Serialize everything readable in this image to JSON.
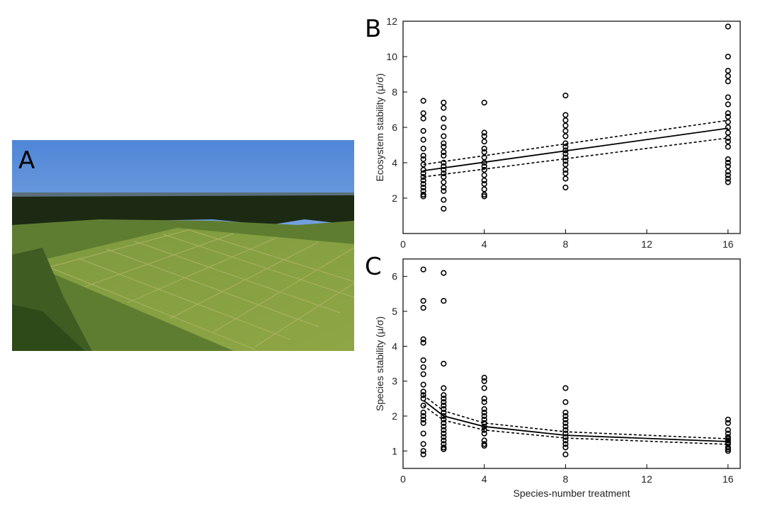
{
  "photo": {
    "label": "A"
  },
  "chart_data": [
    {
      "type": "scatter",
      "panel_label": "B",
      "y_label": "Ecosystem stability (μ/σ)",
      "xlim": [
        0,
        16.6
      ],
      "ylim": [
        0,
        12
      ],
      "xticks": [
        0,
        4,
        8,
        12,
        16
      ],
      "yticks": [
        2,
        4,
        6,
        8,
        10,
        12
      ],
      "color": "#000000",
      "x": [
        1,
        1,
        1,
        1,
        1,
        1,
        1,
        1,
        1,
        1,
        1,
        1,
        1,
        1,
        1,
        1,
        1,
        1,
        2,
        2,
        2,
        2,
        2,
        2,
        2,
        2,
        2,
        2,
        2,
        2,
        2,
        2,
        2,
        2,
        2,
        2,
        2,
        4,
        4,
        4,
        4,
        4,
        4,
        4,
        4,
        4,
        4,
        4,
        4,
        4,
        4,
        4,
        4,
        8,
        8,
        8,
        8,
        8,
        8,
        8,
        8,
        8,
        8,
        8,
        8,
        8,
        8,
        8,
        8,
        8,
        16,
        16,
        16,
        16,
        16,
        16,
        16,
        16,
        16,
        16,
        16,
        16,
        16,
        16,
        16,
        16,
        16,
        16,
        16,
        16,
        16,
        16
      ],
      "values": [
        7.5,
        6.8,
        6.5,
        5.8,
        5.3,
        4.8,
        4.4,
        4.2,
        3.9,
        3.6,
        3.4,
        3.2,
        3.0,
        2.8,
        2.6,
        2.4,
        2.2,
        2.1,
        7.4,
        7.1,
        6.5,
        6.0,
        5.5,
        5.1,
        4.9,
        4.6,
        4.4,
        4.0,
        3.8,
        3.6,
        3.4,
        3.2,
        2.9,
        2.6,
        2.4,
        1.9,
        1.4,
        7.4,
        5.7,
        5.5,
        5.2,
        4.8,
        4.6,
        4.3,
        4.0,
        3.8,
        3.6,
        3.3,
        3.0,
        2.8,
        2.5,
        2.2,
        2.1,
        7.8,
        6.7,
        6.4,
        6.1,
        5.8,
        5.5,
        5.1,
        4.9,
        4.7,
        4.5,
        4.3,
        4.1,
        3.9,
        3.6,
        3.4,
        3.1,
        2.6,
        11.7,
        10.0,
        9.2,
        8.9,
        8.6,
        7.7,
        7.3,
        6.8,
        6.6,
        6.3,
        6.0,
        5.7,
        5.4,
        5.2,
        4.9,
        4.2,
        4.0,
        3.8,
        3.5,
        3.3,
        3.1,
        2.9
      ],
      "fits": [
        {
          "style": "solid",
          "x": [
            1,
            16
          ],
          "values": [
            3.55,
            5.95
          ]
        },
        {
          "style": "dashed",
          "x": [
            1,
            16
          ],
          "values": [
            3.9,
            6.4
          ]
        },
        {
          "style": "dashed",
          "x": [
            1,
            16
          ],
          "values": [
            3.2,
            5.4
          ]
        }
      ]
    },
    {
      "type": "scatter",
      "panel_label": "C",
      "y_label": "Species stability (μ/σ)",
      "x_label": "Species-number treatment",
      "xlim": [
        0,
        16.6
      ],
      "ylim": [
        0.5,
        6.5
      ],
      "xticks": [
        0,
        4,
        8,
        12,
        16
      ],
      "yticks": [
        1,
        2,
        3,
        4,
        5,
        6
      ],
      "color": "#000000",
      "x": [
        1,
        1,
        1,
        1,
        1,
        1,
        1,
        1,
        1,
        1,
        1,
        1,
        1,
        1,
        1,
        1,
        1,
        1,
        1,
        1,
        1,
        2,
        2,
        2,
        2,
        2,
        2,
        2,
        2,
        2,
        2,
        2,
        2,
        2,
        2,
        2,
        2,
        2,
        2,
        2,
        2,
        2,
        4,
        4,
        4,
        4,
        4,
        4,
        4,
        4,
        4,
        4,
        4,
        4,
        4,
        4,
        4,
        4,
        8,
        8,
        8,
        8,
        8,
        8,
        8,
        8,
        8,
        8,
        8,
        8,
        8,
        8,
        16,
        16,
        16,
        16,
        16,
        16,
        16,
        16,
        16,
        16,
        16,
        16
      ],
      "values": [
        6.2,
        5.3,
        5.1,
        4.2,
        4.1,
        3.6,
        3.4,
        3.2,
        2.9,
        2.7,
        2.6,
        2.5,
        2.3,
        2.1,
        2.0,
        1.9,
        1.8,
        1.5,
        1.2,
        1.0,
        0.9,
        6.1,
        5.3,
        3.5,
        2.8,
        2.6,
        2.5,
        2.4,
        2.3,
        2.2,
        2.1,
        2.0,
        1.9,
        1.8,
        1.7,
        1.6,
        1.5,
        1.4,
        1.3,
        1.2,
        1.1,
        1.05,
        3.1,
        3.0,
        2.8,
        2.5,
        2.4,
        2.2,
        2.1,
        2.0,
        1.9,
        1.8,
        1.7,
        1.6,
        1.5,
        1.3,
        1.2,
        1.15,
        2.8,
        2.4,
        2.1,
        2.0,
        1.9,
        1.8,
        1.7,
        1.6,
        1.5,
        1.4,
        1.3,
        1.2,
        1.1,
        0.9,
        1.9,
        1.8,
        1.6,
        1.5,
        1.4,
        1.35,
        1.3,
        1.25,
        1.2,
        1.1,
        1.05,
        1.0
      ],
      "fits": [
        {
          "style": "solid",
          "x": [
            1,
            2,
            4,
            8,
            16
          ],
          "values": [
            2.45,
            2.0,
            1.7,
            1.45,
            1.27
          ]
        },
        {
          "style": "dashed",
          "x": [
            1,
            2,
            4,
            8,
            16
          ],
          "values": [
            2.6,
            2.15,
            1.8,
            1.55,
            1.35
          ]
        },
        {
          "style": "dashed",
          "x": [
            1,
            2,
            4,
            8,
            16
          ],
          "values": [
            2.3,
            1.88,
            1.6,
            1.37,
            1.19
          ]
        }
      ]
    }
  ]
}
